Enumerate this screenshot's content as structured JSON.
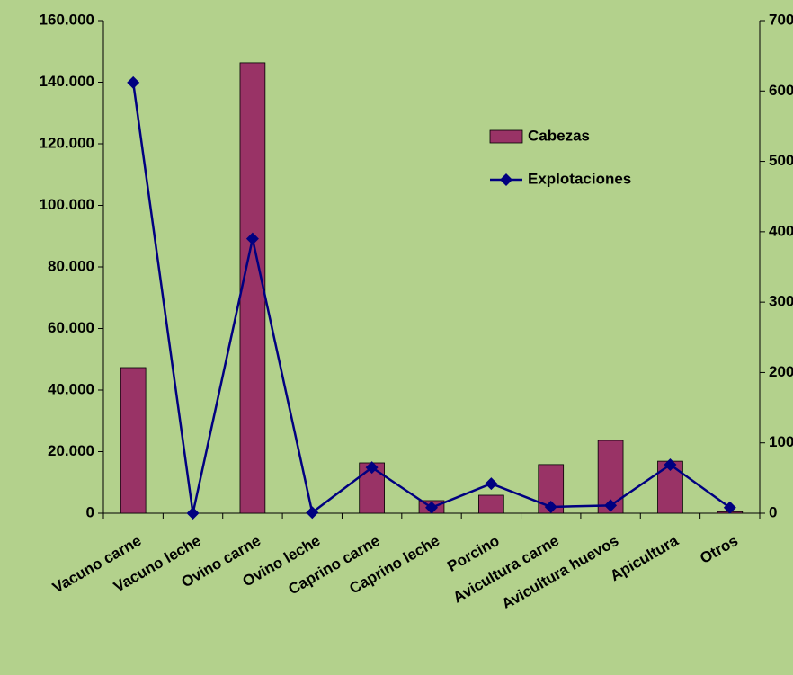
{
  "chart_data": {
    "type": "bar-line",
    "categories": [
      "Vacuno carne",
      "Vacuno leche",
      "Ovino carne",
      "Ovino leche",
      "Caprino carne",
      "Caprino leche",
      "Porcino",
      "Avicultura carne",
      "Avicultura huevos",
      "Apicultura",
      "Otros"
    ],
    "series": [
      {
        "name": "Cabezas",
        "color": "#993366",
        "type": "bar",
        "values": [
          47300,
          0,
          146300,
          0,
          16350,
          4100,
          5840,
          15800,
          23650,
          16900,
          500
        ]
      },
      {
        "name": "Explotaciones",
        "color": "#000080",
        "type": "line",
        "axis": "y2",
        "values": [
          612,
          0,
          390,
          1,
          65,
          8,
          42,
          9,
          11,
          69,
          8
        ]
      }
    ],
    "ylim": [
      0,
      160000
    ],
    "yticks": [
      0,
      {
        "value": 20000,
        "label": "20.000"
      },
      {
        "value": 40000,
        "label": "40.000"
      },
      {
        "value": 60000,
        "label": "60.000"
      },
      {
        "value": 80000,
        "label": "80.000"
      },
      {
        "value": 100000,
        "label": "100.000"
      },
      {
        "value": 120000,
        "label": "120.000"
      },
      {
        "value": 140000,
        "label": "140.000"
      },
      {
        "value": 160000,
        "label": "160.000"
      }
    ],
    "y2lim": [
      0,
      700
    ],
    "y2ticks": [
      0,
      100,
      200,
      300,
      400,
      500,
      600,
      700
    ],
    "grid": false,
    "legend": "upper-right"
  }
}
